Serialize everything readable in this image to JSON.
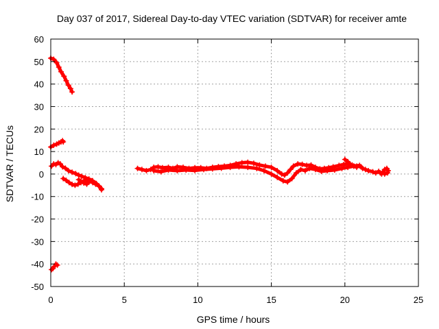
{
  "chart_data": {
    "type": "scatter",
    "title": "Day 037 of 2017, Sidereal Day-to-day VTEC variation (SDTVAR) for receiver amte",
    "xlabel": "GPS time / hours",
    "ylabel": "SDTVAR / TECUs",
    "xlim": [
      0,
      25
    ],
    "ylim": [
      -50,
      60
    ],
    "xticks": [
      0,
      5,
      10,
      15,
      20,
      25
    ],
    "yticks": [
      -50,
      -40,
      -30,
      -20,
      -10,
      0,
      10,
      20,
      30,
      40,
      50,
      60
    ],
    "grid": true,
    "marker": "plus",
    "series": [
      {
        "name": "SDTVAR",
        "color": "#ff0000",
        "segments": [
          [
            [
              0.0,
              51.5
            ],
            [
              0.2,
              51.0
            ],
            [
              0.4,
              49.5
            ],
            [
              0.55,
              47.5
            ],
            [
              0.7,
              45.5
            ],
            [
              0.9,
              43.5
            ],
            [
              1.05,
              41.5
            ],
            [
              1.2,
              39.5
            ],
            [
              1.35,
              38.0
            ],
            [
              1.45,
              36.5
            ]
          ],
          [
            [
              0.0,
              12.0
            ],
            [
              0.2,
              12.8
            ],
            [
              0.4,
              13.3
            ],
            [
              0.55,
              13.8
            ],
            [
              0.7,
              14.3
            ],
            [
              0.8,
              14.8
            ],
            [
              0.85,
              14.3
            ]
          ],
          [
            [
              0.05,
              3.5
            ],
            [
              0.2,
              4.5
            ],
            [
              0.35,
              4.2
            ],
            [
              0.5,
              5.0
            ],
            [
              0.65,
              4.5
            ],
            [
              0.8,
              3.2
            ],
            [
              1.0,
              2.6
            ],
            [
              1.2,
              1.5
            ],
            [
              1.45,
              0.8
            ],
            [
              1.7,
              0.2
            ],
            [
              1.9,
              -0.5
            ],
            [
              2.1,
              -1.0
            ],
            [
              2.35,
              -1.6
            ],
            [
              2.6,
              -2.2
            ],
            [
              2.85,
              -3.0
            ],
            [
              3.1,
              -4.2
            ],
            [
              3.3,
              -5.5
            ],
            [
              3.45,
              -7.0
            ]
          ],
          [
            [
              0.85,
              -2.0
            ],
            [
              1.05,
              -2.8
            ],
            [
              1.25,
              -3.8
            ],
            [
              1.45,
              -4.6
            ],
            [
              1.65,
              -5.0
            ],
            [
              1.85,
              -4.5
            ],
            [
              2.05,
              -3.8
            ],
            [
              2.25,
              -3.0
            ],
            [
              2.45,
              -2.8
            ],
            [
              2.65,
              -3.2
            ],
            [
              2.85,
              -3.8
            ],
            [
              3.05,
              -4.5
            ],
            [
              3.25,
              -5.2
            ],
            [
              3.45,
              -6.5
            ]
          ],
          [
            [
              1.9,
              -2.5
            ],
            [
              2.05,
              -3.2
            ],
            [
              2.25,
              -4.0
            ],
            [
              2.45,
              -4.5
            ],
            [
              2.6,
              -3.6
            ],
            [
              2.8,
              -3.0
            ]
          ],
          [
            [
              0.05,
              -42.5
            ],
            [
              0.15,
              -42.0
            ],
            [
              0.25,
              -41.0
            ],
            [
              0.35,
              -40.0
            ],
            [
              0.45,
              -40.5
            ]
          ],
          [
            [
              5.9,
              2.5
            ],
            [
              6.2,
              2.0
            ],
            [
              6.5,
              1.5
            ],
            [
              6.8,
              2.0
            ],
            [
              7.0,
              3.0
            ],
            [
              7.3,
              3.2
            ],
            [
              7.6,
              2.8
            ],
            [
              8.0,
              3.0
            ],
            [
              8.3,
              2.5
            ],
            [
              8.6,
              3.2
            ],
            [
              9.0,
              3.0
            ],
            [
              9.4,
              2.5
            ],
            [
              9.8,
              2.8
            ],
            [
              10.2,
              2.8
            ],
            [
              10.6,
              2.5
            ],
            [
              11.0,
              3.0
            ],
            [
              11.4,
              3.3
            ],
            [
              11.8,
              3.5
            ],
            [
              12.2,
              3.8
            ],
            [
              12.6,
              4.5
            ],
            [
              13.0,
              5.0
            ],
            [
              13.4,
              5.2
            ],
            [
              13.8,
              4.8
            ],
            [
              14.2,
              4.0
            ],
            [
              14.6,
              3.5
            ],
            [
              15.0,
              3.0
            ],
            [
              15.4,
              1.5
            ],
            [
              15.7,
              0.0
            ],
            [
              15.9,
              -0.5
            ],
            [
              16.1,
              0.5
            ],
            [
              16.3,
              2.0
            ],
            [
              16.5,
              3.5
            ],
            [
              16.8,
              4.5
            ],
            [
              17.1,
              4.3
            ],
            [
              17.4,
              3.8
            ],
            [
              17.7,
              4.0
            ],
            [
              18.0,
              3.0
            ],
            [
              18.3,
              2.3
            ],
            [
              18.6,
              2.5
            ],
            [
              18.9,
              2.8
            ],
            [
              19.2,
              3.2
            ],
            [
              19.6,
              3.8
            ],
            [
              19.9,
              4.2
            ],
            [
              20.2,
              4.5
            ],
            [
              20.5,
              4.0
            ],
            [
              20.8,
              3.5
            ],
            [
              21.1,
              3.2
            ]
          ],
          [
            [
              7.0,
              1.5
            ],
            [
              7.5,
              1.0
            ],
            [
              8.0,
              1.8
            ],
            [
              8.6,
              1.5
            ],
            [
              9.2,
              1.8
            ],
            [
              9.8,
              1.6
            ],
            [
              10.4,
              2.0
            ],
            [
              11.0,
              2.3
            ],
            [
              11.6,
              2.6
            ],
            [
              12.2,
              3.0
            ],
            [
              12.8,
              3.2
            ],
            [
              13.4,
              3.0
            ],
            [
              14.0,
              2.5
            ],
            [
              14.5,
              1.5
            ],
            [
              15.0,
              0.0
            ],
            [
              15.4,
              -1.5
            ],
            [
              15.8,
              -3.0
            ],
            [
              16.1,
              -3.5
            ],
            [
              16.4,
              -2.0
            ],
            [
              16.7,
              0.5
            ],
            [
              17.0,
              2.0
            ],
            [
              17.3,
              1.5
            ],
            [
              17.6,
              2.5
            ],
            [
              18.0,
              2.0
            ],
            [
              18.4,
              1.2
            ],
            [
              18.8,
              1.5
            ],
            [
              19.3,
              1.8
            ],
            [
              19.8,
              2.5
            ],
            [
              20.2,
              3.0
            ],
            [
              20.6,
              3.5
            ],
            [
              21.0,
              3.8
            ]
          ],
          [
            [
              20.0,
              6.5
            ],
            [
              20.2,
              5.5
            ],
            [
              20.4,
              4.0
            ],
            [
              20.6,
              3.5
            ],
            [
              20.8,
              3.0
            ]
          ],
          [
            [
              21.2,
              2.5
            ],
            [
              21.4,
              2.0
            ],
            [
              21.6,
              1.5
            ],
            [
              21.9,
              1.0
            ],
            [
              22.1,
              0.5
            ],
            [
              22.3,
              1.2
            ]
          ],
          [
            [
              22.4,
              0.5
            ],
            [
              22.5,
              0.0
            ],
            [
              22.6,
              1.0
            ],
            [
              22.7,
              2.0
            ],
            [
              22.85,
              2.5
            ],
            [
              22.95,
              1.5
            ],
            [
              22.9,
              0.5
            ],
            [
              22.7,
              0.0
            ]
          ]
        ]
      }
    ]
  }
}
